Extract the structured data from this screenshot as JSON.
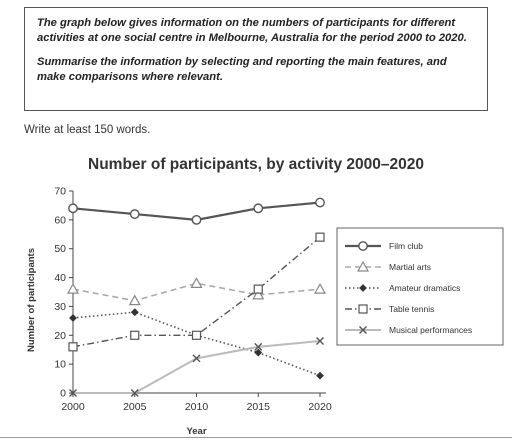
{
  "task": {
    "paragraph1": "The graph below gives information on the numbers of participants for different activities at one social centre in Melbourne, Australia for the period 2000 to 2020.",
    "paragraph2": "Summarise the information by selecting and reporting the main features, and make comparisons where relevant."
  },
  "instruction": "Write at least 150 words.",
  "chart_data": {
    "type": "line",
    "title": "Number of participants, by activity 2000–2020",
    "xlabel": "Year",
    "ylabel": "Number of participants",
    "x": [
      2000,
      2005,
      2010,
      2015,
      2020
    ],
    "xticks": [
      "2000",
      "2005",
      "2010",
      "2015",
      "2020"
    ],
    "yticks": [
      "0",
      "10",
      "20",
      "30",
      "40",
      "50",
      "60",
      "70"
    ],
    "ylim": [
      0,
      70
    ],
    "grid": false,
    "legend_position": "right",
    "series": [
      {
        "name": "Film club",
        "values": [
          64,
          62,
          60,
          64,
          66
        ],
        "marker": "circle",
        "line": "solid"
      },
      {
        "name": "Martial arts",
        "values": [
          36,
          32,
          38,
          34,
          36
        ],
        "marker": "triangle",
        "line": "dashed"
      },
      {
        "name": "Amateur dramatics",
        "values": [
          26,
          28,
          20,
          14,
          6
        ],
        "marker": "diamond",
        "line": "dotted"
      },
      {
        "name": "Table tennis",
        "values": [
          16,
          20,
          20,
          36,
          54
        ],
        "marker": "square",
        "line": "dashdot"
      },
      {
        "name": "Musical performances",
        "values": [
          0,
          0,
          12,
          16,
          18
        ],
        "marker": "x",
        "line": "solid-light"
      }
    ]
  }
}
